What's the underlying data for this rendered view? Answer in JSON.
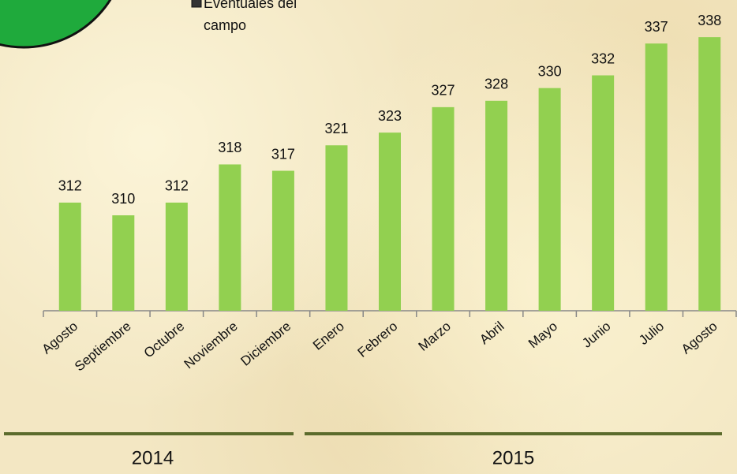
{
  "chart_data": {
    "type": "bar",
    "legend": "Eventuales del campo",
    "categories": [
      "Agosto",
      "Septiembre",
      "Octubre",
      "Noviembre",
      "Diciembre",
      "Enero",
      "Febrero",
      "Marzo",
      "Abril",
      "Mayo",
      "Junio",
      "Julio",
      "Agosto"
    ],
    "values": [
      312,
      310,
      312,
      318,
      317,
      321,
      323,
      327,
      328,
      330,
      332,
      337,
      338
    ],
    "color": "#92d050",
    "ylim": [
      295,
      340
    ],
    "groups": [
      "2014",
      "2015"
    ]
  }
}
